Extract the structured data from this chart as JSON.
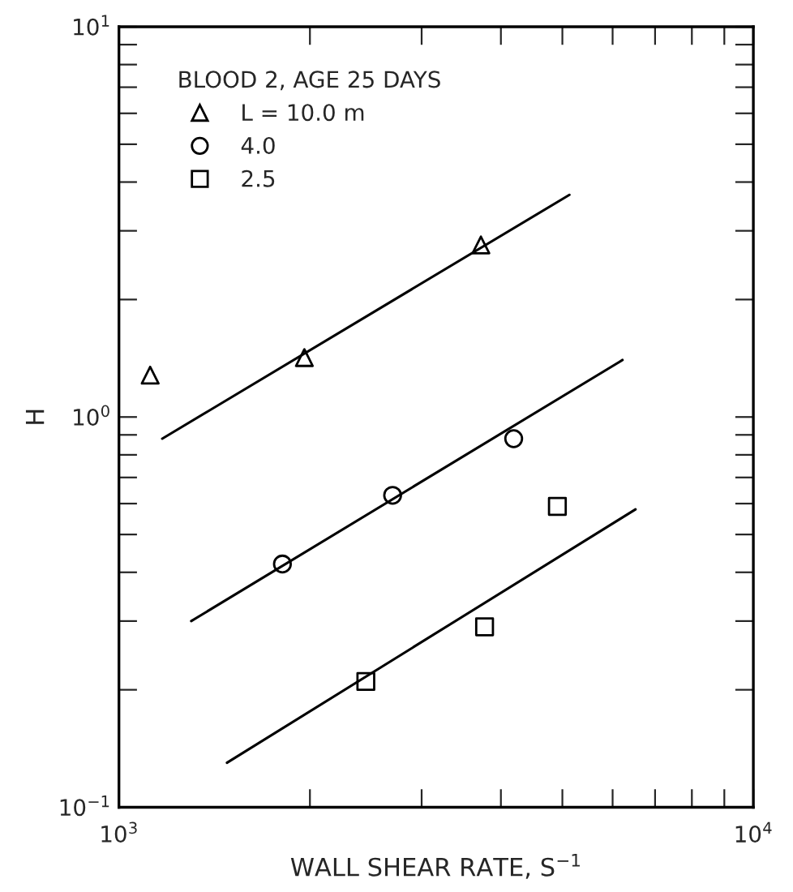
{
  "chart_data": {
    "type": "scatter",
    "xlabel": "WALL SHEAR RATE, S$^{−1}$",
    "ylabel": "H",
    "legend_title": "BLOOD 2, AGE 25 DAYS",
    "legend": "top left",
    "log": "xy",
    "grid": false,
    "xlim": [
      1000,
      10000
    ],
    "ylim": [
      0.1,
      10
    ],
    "xticks": [
      {
        "value": 1000,
        "label": "10$^{3}$"
      },
      {
        "value": 2000,
        "label": null
      },
      {
        "value": 3000,
        "label": null
      },
      {
        "value": 4000,
        "label": null
      },
      {
        "value": 5000,
        "label": null
      },
      {
        "value": 6000,
        "label": null
      },
      {
        "value": 7000,
        "label": null
      },
      {
        "value": 8000,
        "label": null
      },
      {
        "value": 9000,
        "label": null
      },
      {
        "value": 10000,
        "label": "10$^{4}$"
      }
    ],
    "yticks": [
      {
        "value": 0.1,
        "label": "10$^{−1}$"
      },
      {
        "value": 0.2,
        "label": null
      },
      {
        "value": 0.3,
        "label": null
      },
      {
        "value": 0.4,
        "label": null
      },
      {
        "value": 0.5,
        "label": null
      },
      {
        "value": 0.6,
        "label": null
      },
      {
        "value": 0.7,
        "label": null
      },
      {
        "value": 0.8,
        "label": null
      },
      {
        "value": 0.9,
        "label": null
      },
      {
        "value": 1,
        "label": "10$^{0}$"
      },
      {
        "value": 2,
        "label": null
      },
      {
        "value": 3,
        "label": null
      },
      {
        "value": 4,
        "label": null
      },
      {
        "value": 5,
        "label": null
      },
      {
        "value": 6,
        "label": null
      },
      {
        "value": 7,
        "label": null
      },
      {
        "value": 8,
        "label": null
      },
      {
        "value": 9,
        "label": null
      },
      {
        "value": 10,
        "label": "10$^{1}$"
      }
    ],
    "series": [
      {
        "name": "L = 10.0 m",
        "marker": "triangle",
        "color": "#000000",
        "x": [
          1120,
          1960,
          3720
        ],
        "values": [
          1.28,
          1.42,
          2.76
        ]
      },
      {
        "name": "4.0",
        "marker": "circle",
        "color": "#000000",
        "x": [
          1810,
          2700,
          4190
        ],
        "values": [
          0.42,
          0.63,
          0.88
        ]
      },
      {
        "name": "2.5",
        "marker": "square",
        "color": "#000000",
        "x": [
          2450,
          3770,
          4910
        ],
        "values": [
          0.21,
          0.29,
          0.59
        ]
      },
      {
        "type": "line",
        "marker": "none",
        "line_style": "solid",
        "color": "#000000",
        "x": [
          1170,
          5130
        ],
        "values": [
          0.88,
          3.71
        ]
      },
      {
        "type": "line",
        "marker": "none",
        "line_style": "solid",
        "color": "#000000",
        "x": [
          1300,
          6220
        ],
        "values": [
          0.3,
          1.4
        ]
      },
      {
        "type": "line",
        "marker": "none",
        "line_style": "solid",
        "color": "#000000",
        "x": [
          1480,
          6520
        ],
        "values": [
          0.13,
          0.58
        ]
      }
    ]
  }
}
